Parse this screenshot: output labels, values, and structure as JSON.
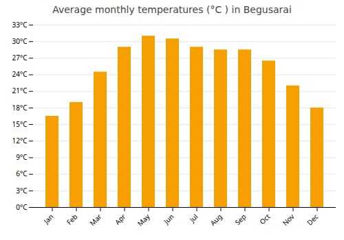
{
  "chart_data": {
    "type": "bar",
    "title": "Average monthly temperatures (°C ) in Begusarai",
    "categories": [
      "Jan",
      "Feb",
      "Mar",
      "Apr",
      "May",
      "Jun",
      "Jul",
      "Aug",
      "Sep",
      "Oct",
      "Nov",
      "Dec"
    ],
    "values": [
      16.5,
      19.0,
      24.5,
      29.0,
      31.0,
      30.5,
      29.0,
      28.5,
      28.5,
      26.5,
      22.0,
      18.0
    ],
    "color": "#F5A000",
    "ylim": [
      0,
      33
    ],
    "yticks": [
      {
        "value": 0,
        "label": "0°C"
      },
      {
        "value": 3,
        "label": "3°C"
      },
      {
        "value": 6,
        "label": "6°C"
      },
      {
        "value": 9,
        "label": "9°C"
      },
      {
        "value": 12,
        "label": "12°C"
      },
      {
        "value": 15,
        "label": "15°C"
      },
      {
        "value": 18,
        "label": "18°C"
      },
      {
        "value": 21,
        "label": "21°C"
      },
      {
        "value": 24,
        "label": "24°C"
      },
      {
        "value": 27,
        "label": "27°C"
      },
      {
        "value": 30,
        "label": "30°C"
      },
      {
        "value": 33,
        "label": "33°C"
      }
    ],
    "grid": true
  }
}
